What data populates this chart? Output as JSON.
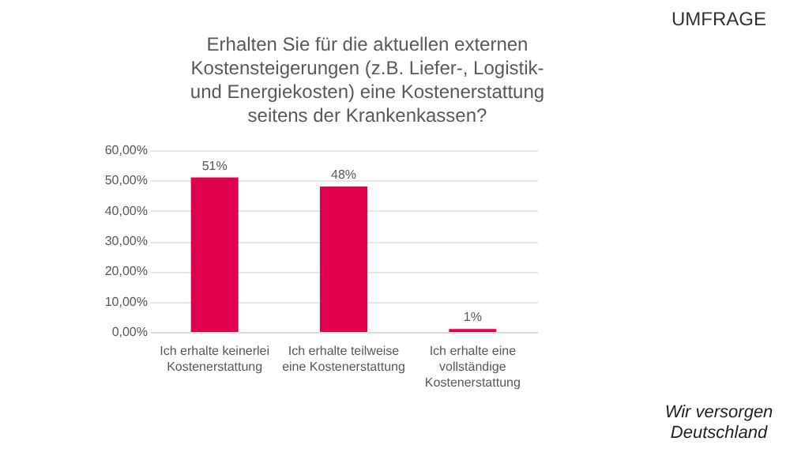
{
  "chart_data": {
    "type": "bar",
    "title": "Erhalten Sie für die aktuellen externen Kostensteigerungen (z.B. Liefer-, Logistik- und Energiekosten) eine Kostenerstattung seitens der Krankenkassen?",
    "categories": [
      "Ich erhalte keinerlei Kostenerstattung",
      "Ich erhalte teilweise eine Kostenerstattung",
      "Ich erhalte eine vollständige Kostenerstattung"
    ],
    "values": [
      51,
      48,
      1
    ],
    "value_labels": [
      "51%",
      "48%",
      "1%"
    ],
    "color": "#e0004d",
    "ylim": [
      0,
      60
    ],
    "yticks": [
      {
        "value": 0,
        "label": "0,00%"
      },
      {
        "value": 10,
        "label": "10,00%"
      },
      {
        "value": 20,
        "label": "20,00%"
      },
      {
        "value": 30,
        "label": "30,00%"
      },
      {
        "value": 40,
        "label": "40,00%"
      },
      {
        "value": 50,
        "label": "50,00%"
      },
      {
        "value": 60,
        "label": "60,00%"
      }
    ],
    "grid": "y",
    "legend": false,
    "annotations": [
      "UMFRAGE",
      "Wir versorgen Deutschland"
    ]
  }
}
